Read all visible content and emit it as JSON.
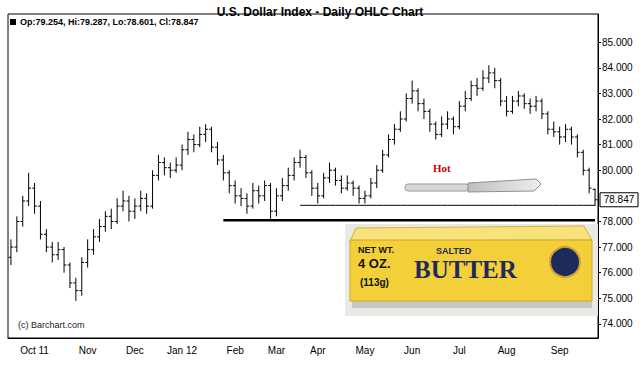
{
  "chart_data": {
    "type": "ohlc",
    "title": "U.S. Dollar Index - Daily OHLC Chart",
    "subtitle": "Op:79.254, Hi:79.287, Lo:78.601, Cl:78.847",
    "color": "#000000",
    "grid": false,
    "categories": [
      null,
      null,
      null,
      null,
      "Oct 11",
      null,
      null,
      null,
      null,
      null,
      null,
      null,
      null,
      "Nov",
      null,
      null,
      null,
      null,
      null,
      null,
      null,
      "Dec",
      null,
      null,
      null,
      null,
      null,
      null,
      null,
      "Jan 12",
      null,
      null,
      null,
      null,
      null,
      null,
      null,
      null,
      "Feb",
      null,
      null,
      null,
      null,
      null,
      null,
      "Mar",
      null,
      null,
      null,
      null,
      null,
      null,
      "Apr",
      null,
      null,
      null,
      null,
      null,
      null,
      null,
      "May",
      null,
      null,
      null,
      null,
      null,
      null,
      null,
      "Jun",
      null,
      null,
      null,
      null,
      null,
      null,
      null,
      "Jul",
      null,
      null,
      null,
      null,
      null,
      null,
      null,
      "Aug",
      null,
      null,
      null,
      null,
      null,
      null,
      null,
      null,
      "Sep",
      null,
      null,
      null,
      null,
      null,
      null
    ],
    "open": [
      76.6,
      77.0,
      78.0,
      78.8,
      79.3,
      78.6,
      77.5,
      77.0,
      76.7,
      76.9,
      76.3,
      75.6,
      75.3,
      76.4,
      76.9,
      77.4,
      77.8,
      78.2,
      78.0,
      78.6,
      78.8,
      78.4,
      78.6,
      78.9,
      78.6,
      79.8,
      80.3,
      80.1,
      80.0,
      80.2,
      80.8,
      81.2,
      81.0,
      81.4,
      81.6,
      80.9,
      80.4,
      79.9,
      79.4,
      79.0,
      78.9,
      78.6,
      79.2,
      79.0,
      79.4,
      78.4,
      79.0,
      79.4,
      79.8,
      80.3,
      80.5,
      79.9,
      79.3,
      79.0,
      79.7,
      80.0,
      79.6,
      79.3,
      79.5,
      79.3,
      78.9,
      79.0,
      79.5,
      80.0,
      80.6,
      81.2,
      81.6,
      82.0,
      82.8,
      83.1,
      82.6,
      82.3,
      81.8,
      81.4,
      81.8,
      82.0,
      81.7,
      82.5,
      82.8,
      83.3,
      83.2,
      83.6,
      83.8,
      83.5,
      82.7,
      82.3,
      82.7,
      82.9,
      82.6,
      82.5,
      82.7,
      82.2,
      81.6,
      81.5,
      81.3,
      81.6,
      81.3,
      80.7,
      80.0,
      79.254
    ],
    "high": [
      77.3,
      78.2,
      79.0,
      79.9,
      79.5,
      78.8,
      77.7,
      77.2,
      77.2,
      77.0,
      76.4,
      75.8,
      76.6,
      77.3,
      77.7,
      78.1,
      78.4,
      78.5,
      78.9,
      79.2,
      79.0,
      78.9,
      79.2,
      79.1,
      80.0,
      80.6,
      80.5,
      80.3,
      80.5,
      81.0,
      81.5,
      81.4,
      81.7,
      81.8,
      81.7,
      81.1,
      80.6,
      80.0,
      79.6,
      79.3,
      79.1,
      79.5,
      79.4,
      79.6,
      79.5,
      79.3,
      79.7,
      80.1,
      80.5,
      80.8,
      80.6,
      80.0,
      79.5,
      79.9,
      80.3,
      80.1,
      79.8,
      79.8,
      79.6,
      79.4,
      79.2,
      79.7,
      80.2,
      80.8,
      81.4,
      81.8,
      82.3,
      83.0,
      83.5,
      83.2,
      82.8,
      82.4,
      81.9,
      82.1,
      82.3,
      82.1,
      82.7,
      83.1,
      83.5,
      83.6,
      83.9,
      84.1,
      84.0,
      83.6,
      82.9,
      82.9,
      83.1,
      83.0,
      82.8,
      82.9,
      82.8,
      82.3,
      81.9,
      81.7,
      81.8,
      81.7,
      81.4,
      80.8,
      80.1,
      79.287
    ],
    "low": [
      76.3,
      76.8,
      77.8,
      78.6,
      78.3,
      77.3,
      76.8,
      76.4,
      76.5,
      76.0,
      75.4,
      74.9,
      75.1,
      76.2,
      76.7,
      77.2,
      77.6,
      77.7,
      77.9,
      78.4,
      78.0,
      78.1,
      78.4,
      78.3,
      78.5,
      79.6,
      79.8,
      79.7,
      79.9,
      80.0,
      80.6,
      80.7,
      80.9,
      81.1,
      80.7,
      80.2,
      79.6,
      79.1,
      78.7,
      78.6,
      78.3,
      78.5,
      78.7,
      78.8,
      78.1,
      78.2,
      78.8,
      79.2,
      79.6,
      80.1,
      79.7,
      79.0,
      78.7,
      78.9,
      79.5,
      79.4,
      79.1,
      79.2,
      79.0,
      78.7,
      78.7,
      78.9,
      79.3,
      79.9,
      80.5,
      81.0,
      81.5,
      81.9,
      82.6,
      82.3,
      82.0,
      81.5,
      81.2,
      81.3,
      81.6,
      81.4,
      81.6,
      82.3,
      82.7,
      82.9,
      83.1,
      83.4,
      83.2,
      82.5,
      82.1,
      82.2,
      82.5,
      82.4,
      82.2,
      82.3,
      82.0,
      81.4,
      81.3,
      81.0,
      81.1,
      81.0,
      80.5,
      79.8,
      79.1,
      78.601
    ],
    "close": [
      77.0,
      78.0,
      78.8,
      79.3,
      78.6,
      77.5,
      77.0,
      76.7,
      76.9,
      76.3,
      75.6,
      75.3,
      76.4,
      76.9,
      77.4,
      77.8,
      78.2,
      78.0,
      78.6,
      78.8,
      78.4,
      78.6,
      78.9,
      78.6,
      79.8,
      80.3,
      80.1,
      80.0,
      80.2,
      80.8,
      81.2,
      81.0,
      81.4,
      81.6,
      80.9,
      80.4,
      79.9,
      79.4,
      79.0,
      78.9,
      78.6,
      79.2,
      79.0,
      79.4,
      78.4,
      79.0,
      79.4,
      79.8,
      80.3,
      80.5,
      79.9,
      79.3,
      79.0,
      79.7,
      80.0,
      79.6,
      79.3,
      79.5,
      79.3,
      78.9,
      79.0,
      79.5,
      80.0,
      80.6,
      81.2,
      81.6,
      82.0,
      82.8,
      83.1,
      82.6,
      82.3,
      81.8,
      81.4,
      81.8,
      82.0,
      81.7,
      82.5,
      82.8,
      83.3,
      83.2,
      83.6,
      83.8,
      83.5,
      82.7,
      82.3,
      82.7,
      82.9,
      82.6,
      82.5,
      82.7,
      82.2,
      81.6,
      81.5,
      81.3,
      81.6,
      81.3,
      80.7,
      80.0,
      79.3,
      78.847
    ],
    "ylim": [
      73.45,
      86.1
    ],
    "yticks": [
      {
        "value": 74,
        "label": "74.000"
      },
      {
        "value": 75,
        "label": "75.000"
      },
      {
        "value": 76,
        "label": "76.000"
      },
      {
        "value": 77,
        "label": "77.000"
      },
      {
        "value": 78,
        "label": "78.000"
      },
      {
        "value": 80,
        "label": "80.000"
      },
      {
        "value": 81,
        "label": "81.000"
      },
      {
        "value": 82,
        "label": "82.000"
      },
      {
        "value": 83,
        "label": "83.000"
      },
      {
        "value": 84,
        "label": "84.000"
      },
      {
        "value": 85,
        "label": "85.000"
      }
    ],
    "lines": [
      {
        "value": 78.05,
        "from": 36,
        "to": 99,
        "line_style": "thick"
      },
      {
        "value": 78.63,
        "from": 49,
        "to": 99,
        "line_style": "solid"
      }
    ],
    "annotations": {
      "hot": "Hot",
      "credit": "(c) Barchart.com",
      "package": [
        "NET WT.",
        "4 OZ.",
        "(113g)",
        "SALTED",
        "BUTTER"
      ]
    }
  }
}
